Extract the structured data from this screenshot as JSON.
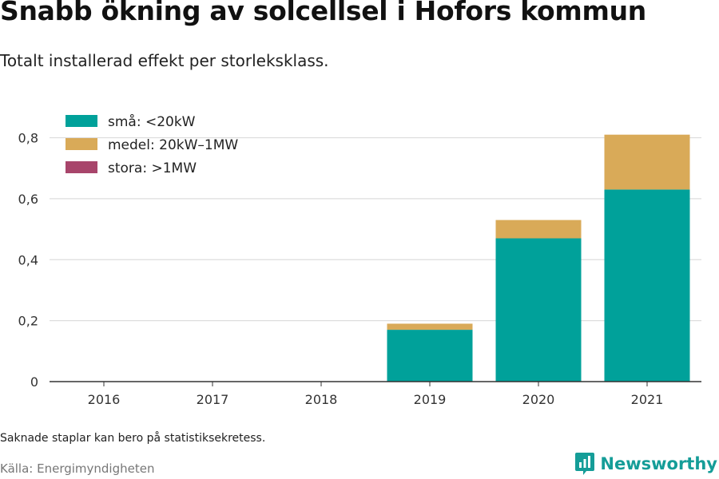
{
  "title": "Snabb ökning av solcellsel i Hofors kommun",
  "subtitle": "Totalt installerad effekt per storleksklass.",
  "note": "Saknade staplar kan bero på statistiksekretess.",
  "source": "Källa: Energimyndigheten",
  "brand": "Newsworthy",
  "chart_data": {
    "type": "bar",
    "stacked": true,
    "categories": [
      "2016",
      "2017",
      "2018",
      "2019",
      "2020",
      "2021"
    ],
    "series": [
      {
        "name": "små: <20kW",
        "color": "#00a19a",
        "values": [
          0,
          0,
          0,
          0.17,
          0.47,
          0.63
        ]
      },
      {
        "name": "medel: 20kW–1MW",
        "color": "#d9aa58",
        "values": [
          0,
          0,
          0,
          0.02,
          0.06,
          0.18
        ]
      },
      {
        "name": "stora: >1MW",
        "color": "#a8456b",
        "values": [
          0,
          0,
          0,
          0,
          0,
          0
        ]
      }
    ],
    "ylim": [
      0,
      0.85
    ],
    "yticks": [
      0,
      0.2,
      0.4,
      0.6,
      0.8
    ],
    "ytick_labels": [
      "0",
      "0,2",
      "0,4",
      "0,6",
      "0,8"
    ],
    "grid": true,
    "legend": "top-left"
  }
}
